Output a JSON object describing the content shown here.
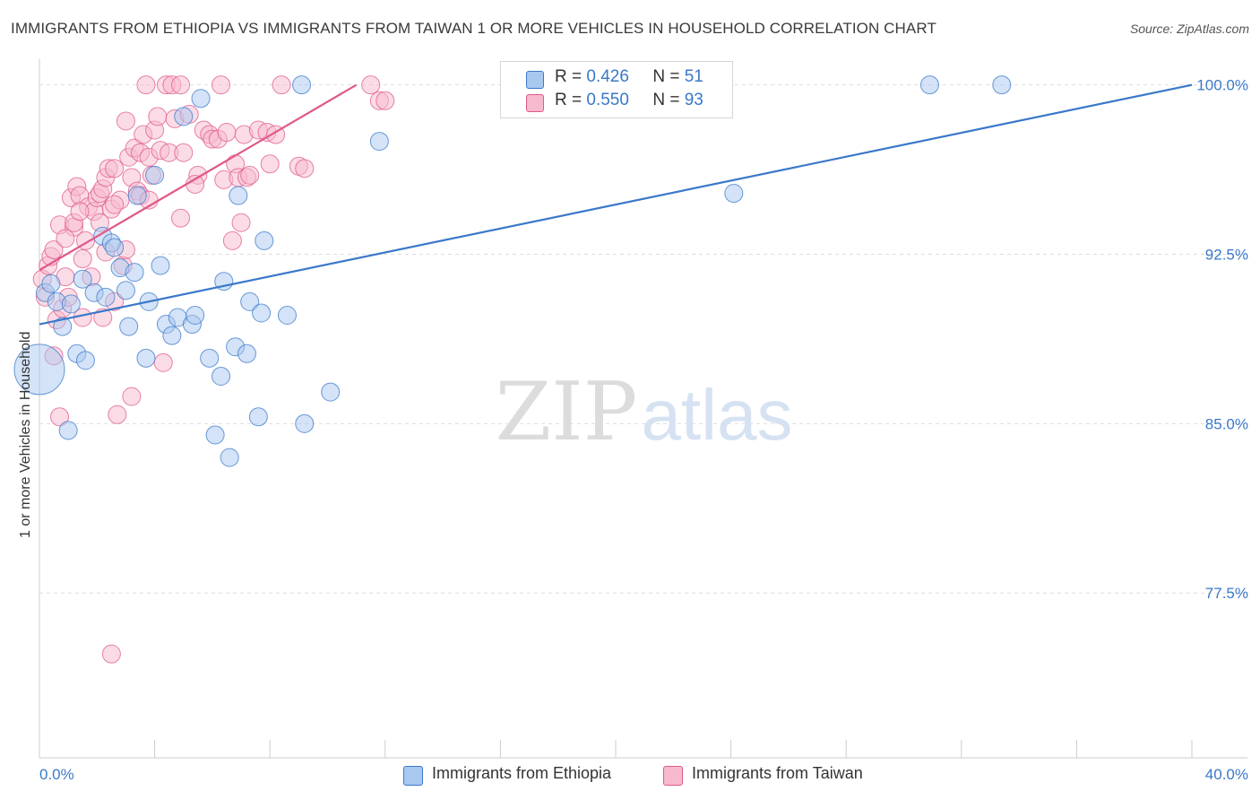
{
  "title": "IMMIGRANTS FROM ETHIOPIA VS IMMIGRANTS FROM TAIWAN 1 OR MORE VEHICLES IN HOUSEHOLD CORRELATION CHART",
  "source": "Source: ZipAtlas.com",
  "watermark": {
    "zip": "ZIP",
    "atlas": "atlas"
  },
  "stats": [
    {
      "r_label": "R =",
      "r_value": "0.426",
      "n_label": "N =",
      "n_value": "51"
    },
    {
      "r_label": "R =",
      "r_value": "0.550",
      "n_label": "N =",
      "n_value": "93"
    }
  ],
  "chart_data": {
    "type": "scatter",
    "title": "IMMIGRANTS FROM ETHIOPIA VS IMMIGRANTS FROM TAIWAN 1 OR MORE VEHICLES IN HOUSEHOLD CORRELATION CHART",
    "xlabel": "",
    "ylabel": "1 or more Vehicles in Household",
    "xlim": [
      0,
      40
    ],
    "ylim": [
      70.2,
      100.9
    ],
    "x_tick_labels": [
      "0.0%",
      "40.0%"
    ],
    "y_ticks": [
      {
        "value": 100.0,
        "label": "100.0%"
      },
      {
        "value": 92.5,
        "label": "92.5%"
      },
      {
        "value": 85.0,
        "label": "85.0%"
      },
      {
        "value": 77.5,
        "label": "77.5%"
      }
    ],
    "grid": true,
    "legend_position": "bottom-center",
    "series": [
      {
        "name": "Immigrants from Ethiopia",
        "color": "#3a78c9",
        "fill": "#a9c8f0",
        "r": 0.426,
        "n": 51,
        "trend": {
          "x0": 0.0,
          "y0": 89.4,
          "x1": 40.0,
          "y1": 100.0
        },
        "points": [
          [
            0.0,
            87.4,
            28
          ],
          [
            0.2,
            90.8,
            10
          ],
          [
            0.4,
            91.2,
            10
          ],
          [
            0.6,
            90.4,
            10
          ],
          [
            0.8,
            89.3,
            10
          ],
          [
            1.0,
            84.7,
            10
          ],
          [
            1.1,
            90.3,
            10
          ],
          [
            1.3,
            88.1,
            10
          ],
          [
            1.5,
            91.4,
            10
          ],
          [
            1.6,
            87.8,
            10
          ],
          [
            1.9,
            90.8,
            10
          ],
          [
            2.2,
            93.3,
            10
          ],
          [
            2.3,
            90.6,
            10
          ],
          [
            2.5,
            93.0,
            10
          ],
          [
            2.6,
            92.8,
            10
          ],
          [
            2.8,
            91.9,
            10
          ],
          [
            3.0,
            90.9,
            10
          ],
          [
            3.1,
            89.3,
            10
          ],
          [
            3.3,
            91.7,
            10
          ],
          [
            3.4,
            95.1,
            10
          ],
          [
            3.7,
            87.9,
            10
          ],
          [
            3.8,
            90.4,
            10
          ],
          [
            4.0,
            96.0,
            10
          ],
          [
            4.2,
            92.0,
            10
          ],
          [
            4.4,
            89.4,
            10
          ],
          [
            4.6,
            88.9,
            10
          ],
          [
            4.8,
            89.7,
            10
          ],
          [
            5.0,
            98.6,
            10
          ],
          [
            5.3,
            89.4,
            10
          ],
          [
            5.4,
            89.8,
            10
          ],
          [
            5.6,
            99.4,
            10
          ],
          [
            5.9,
            87.9,
            10
          ],
          [
            6.1,
            84.5,
            10
          ],
          [
            6.3,
            87.1,
            10
          ],
          [
            6.4,
            91.3,
            10
          ],
          [
            6.6,
            83.5,
            10
          ],
          [
            6.8,
            88.4,
            10
          ],
          [
            6.9,
            95.1,
            10
          ],
          [
            7.2,
            88.1,
            10
          ],
          [
            7.3,
            90.4,
            10
          ],
          [
            7.6,
            85.3,
            10
          ],
          [
            7.7,
            89.9,
            10
          ],
          [
            7.8,
            93.1,
            10
          ],
          [
            8.6,
            89.8,
            10
          ],
          [
            9.1,
            100.0,
            10
          ],
          [
            9.2,
            85.0,
            10
          ],
          [
            10.1,
            86.4,
            10
          ],
          [
            11.8,
            97.5,
            10
          ],
          [
            24.1,
            95.2,
            10
          ],
          [
            30.9,
            100.0,
            10
          ],
          [
            33.4,
            100.0,
            10
          ]
        ]
      },
      {
        "name": "Immigrants from Taiwan",
        "color": "#e0588a",
        "fill": "#f7b9ce",
        "r": 0.55,
        "n": 93,
        "trend": {
          "x0": 0.0,
          "y0": 91.8,
          "x1": 11.0,
          "y1": 100.0
        },
        "points": [
          [
            0.1,
            91.4,
            10
          ],
          [
            0.2,
            90.6,
            10
          ],
          [
            0.3,
            92.0,
            10
          ],
          [
            0.4,
            92.4,
            10
          ],
          [
            0.5,
            92.7,
            10
          ],
          [
            0.5,
            88.0,
            10
          ],
          [
            0.6,
            89.6,
            10
          ],
          [
            0.7,
            93.8,
            10
          ],
          [
            0.7,
            85.3,
            10
          ],
          [
            0.8,
            90.1,
            10
          ],
          [
            0.9,
            91.5,
            10
          ],
          [
            1.0,
            90.6,
            10
          ],
          [
            1.1,
            95.0,
            10
          ],
          [
            1.2,
            93.7,
            10
          ],
          [
            1.2,
            93.9,
            10
          ],
          [
            1.3,
            95.5,
            10
          ],
          [
            1.4,
            95.1,
            10
          ],
          [
            1.5,
            89.7,
            10
          ],
          [
            1.5,
            92.3,
            10
          ],
          [
            1.6,
            93.1,
            10
          ],
          [
            1.7,
            94.6,
            10
          ],
          [
            1.8,
            91.5,
            10
          ],
          [
            1.9,
            94.4,
            10
          ],
          [
            2.0,
            95.0,
            10
          ],
          [
            2.1,
            93.9,
            10
          ],
          [
            2.1,
            95.2,
            10
          ],
          [
            2.2,
            95.4,
            10
          ],
          [
            2.2,
            89.7,
            10
          ],
          [
            2.3,
            92.6,
            10
          ],
          [
            2.3,
            95.9,
            10
          ],
          [
            2.4,
            96.3,
            10
          ],
          [
            2.5,
            94.5,
            10
          ],
          [
            2.5,
            74.8,
            10
          ],
          [
            2.6,
            96.3,
            10
          ],
          [
            2.6,
            90.4,
            10
          ],
          [
            2.7,
            85.4,
            10
          ],
          [
            2.8,
            94.9,
            10
          ],
          [
            2.9,
            92.0,
            10
          ],
          [
            3.0,
            98.4,
            10
          ],
          [
            3.1,
            96.8,
            10
          ],
          [
            3.2,
            86.2,
            10
          ],
          [
            3.2,
            95.9,
            10
          ],
          [
            3.3,
            97.2,
            10
          ],
          [
            3.4,
            95.3,
            10
          ],
          [
            3.5,
            95.1,
            10
          ],
          [
            3.5,
            97.0,
            10
          ],
          [
            3.6,
            97.8,
            10
          ],
          [
            3.7,
            100.0,
            10
          ],
          [
            3.8,
            96.8,
            10
          ],
          [
            3.9,
            96.0,
            10
          ],
          [
            4.0,
            98.0,
            10
          ],
          [
            4.1,
            98.6,
            10
          ],
          [
            4.2,
            97.1,
            10
          ],
          [
            4.3,
            87.7,
            10
          ],
          [
            4.4,
            100.0,
            10
          ],
          [
            4.5,
            97.0,
            10
          ],
          [
            4.6,
            100.0,
            10
          ],
          [
            4.7,
            98.5,
            10
          ],
          [
            4.9,
            94.1,
            10
          ],
          [
            5.0,
            97.0,
            10
          ],
          [
            5.2,
            98.7,
            10
          ],
          [
            5.5,
            96.0,
            10
          ],
          [
            5.7,
            98.0,
            10
          ],
          [
            5.9,
            97.8,
            10
          ],
          [
            6.0,
            97.6,
            10
          ],
          [
            6.2,
            97.6,
            10
          ],
          [
            6.3,
            100.0,
            10
          ],
          [
            6.4,
            95.8,
            10
          ],
          [
            6.5,
            97.9,
            10
          ],
          [
            6.7,
            93.1,
            10
          ],
          [
            6.8,
            96.5,
            10
          ],
          [
            6.9,
            95.9,
            10
          ],
          [
            7.0,
            93.9,
            10
          ],
          [
            7.1,
            97.8,
            10
          ],
          [
            7.2,
            95.9,
            10
          ],
          [
            7.3,
            96.0,
            10
          ],
          [
            7.6,
            98.0,
            10
          ],
          [
            7.9,
            97.9,
            10
          ],
          [
            8.0,
            96.5,
            10
          ],
          [
            8.2,
            97.8,
            10
          ],
          [
            8.4,
            100.0,
            10
          ],
          [
            9.0,
            96.4,
            10
          ],
          [
            9.2,
            96.3,
            10
          ],
          [
            11.5,
            100.0,
            10
          ],
          [
            11.8,
            99.3,
            10
          ],
          [
            12.0,
            99.3,
            10
          ],
          [
            2.6,
            94.7,
            10
          ],
          [
            1.4,
            94.4,
            10
          ],
          [
            3.8,
            94.9,
            10
          ],
          [
            0.9,
            93.2,
            10
          ],
          [
            4.9,
            100.0,
            10
          ],
          [
            3.0,
            92.7,
            10
          ],
          [
            5.4,
            95.6,
            10
          ]
        ]
      }
    ]
  }
}
